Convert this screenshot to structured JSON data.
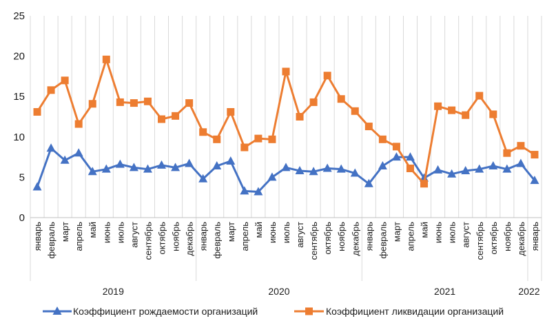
{
  "chart_data": {
    "type": "line",
    "title": "",
    "xlabel": "",
    "ylabel": "",
    "ylim": [
      0,
      25
    ],
    "yticks": [
      0,
      5,
      10,
      15,
      20,
      25
    ],
    "grid": "vertical",
    "legend_position": "bottom",
    "categories": [
      "январь",
      "февраль",
      "март",
      "апрель",
      "май",
      "июнь",
      "июль",
      "август",
      "сентябрь",
      "октябрь",
      "ноябрь",
      "декабрь",
      "январь",
      "февраль",
      "март",
      "апрель",
      "май",
      "июнь",
      "июль",
      "август",
      "сентябрь",
      "октябрь",
      "ноябрь",
      "декабрь",
      "январь",
      "февраль",
      "март",
      "апрель",
      "май",
      "июнь",
      "июль",
      "август",
      "сентябрь",
      "октябрь",
      "ноябрь",
      "декабрь",
      "январь"
    ],
    "years": [
      {
        "label": "2019",
        "start": 0,
        "end": 11
      },
      {
        "label": "2020",
        "start": 12,
        "end": 23
      },
      {
        "label": "2021",
        "start": 24,
        "end": 35
      },
      {
        "label": "2022",
        "start": 36,
        "end": 36
      }
    ],
    "series": [
      {
        "name": "Коэффициент рождаемости организаций",
        "color": "#4472C4",
        "marker": "triangle",
        "values": [
          3.8,
          8.6,
          7.1,
          8.0,
          5.7,
          6.0,
          6.6,
          6.2,
          6.0,
          6.5,
          6.2,
          6.7,
          4.8,
          6.4,
          7.0,
          3.3,
          3.2,
          5.0,
          6.2,
          5.8,
          5.7,
          6.1,
          6.0,
          5.5,
          4.2,
          6.4,
          7.5,
          7.5,
          4.9,
          5.9,
          5.4,
          5.8,
          6.0,
          6.4,
          6.0,
          6.7,
          4.6
        ]
      },
      {
        "name": "Коэффициент ликвидации организаций",
        "color": "#ED7D31",
        "marker": "square",
        "values": [
          13.1,
          15.8,
          17.0,
          11.6,
          14.1,
          19.6,
          14.3,
          14.2,
          14.4,
          12.2,
          12.6,
          14.2,
          10.6,
          9.7,
          13.1,
          8.7,
          9.8,
          9.7,
          18.1,
          12.5,
          14.3,
          17.6,
          14.7,
          13.2,
          11.3,
          9.7,
          8.8,
          6.1,
          4.2,
          13.8,
          13.3,
          12.7,
          15.1,
          12.8,
          8.0,
          8.9,
          7.8
        ]
      }
    ]
  }
}
